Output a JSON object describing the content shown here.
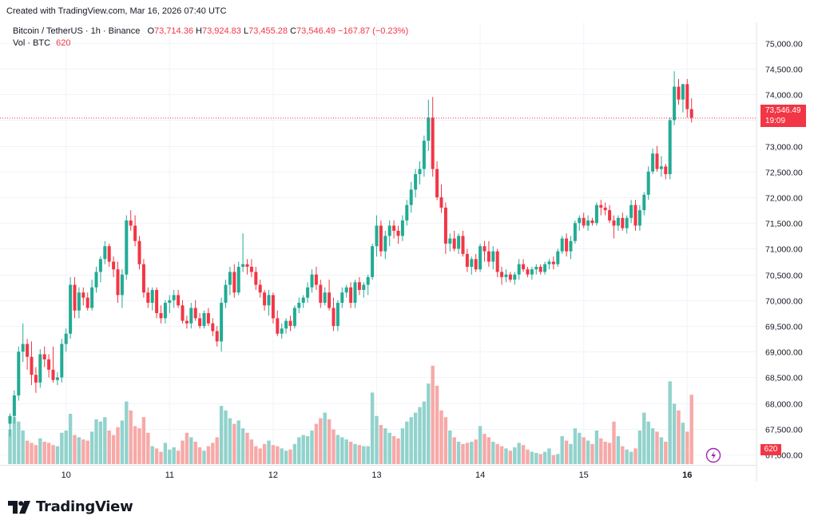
{
  "header": {
    "created_text": "Created with TradingView.com, Mar 16, 2026 07:40 UTC"
  },
  "legend": {
    "symbol": "Bitcoin / TetherUS · 1h · Binance",
    "o_label": "O",
    "o_value": "73,714.36",
    "h_label": "H",
    "h_value": "73,924.83",
    "l_label": "L",
    "l_value": "73,455.28",
    "c_label": "C",
    "c_value": "73,546.49",
    "change": "−167.87 (−0.23%)",
    "vol_label": "Vol · BTC",
    "vol_value": "620"
  },
  "last_price": {
    "price": "73,546.49",
    "countdown": "19:09",
    "volume": "620"
  },
  "logo_text": "TradingView",
  "colors": {
    "up": "#22ab94",
    "down": "#f23645",
    "up_vol": "#92d2cc",
    "down_vol": "#f7a9a7"
  },
  "chart_data": {
    "type": "candlestick",
    "ylim": [
      66800,
      75400
    ],
    "y_ticks": [
      "75,000.00",
      "74,500.00",
      "74,000.00",
      "73,500.00",
      "73,000.00",
      "72,500.00",
      "72,000.00",
      "71,500.00",
      "71,000.00",
      "70,500.00",
      "70,000.00",
      "69,500.00",
      "69,000.00",
      "68,500.00",
      "68,000.00",
      "67,500.00",
      "67,000.00"
    ],
    "y_tick_values": [
      75000,
      74500,
      74000,
      73500,
      73000,
      72500,
      72000,
      71500,
      71000,
      70500,
      70000,
      69500,
      69000,
      68500,
      68000,
      67500,
      67000
    ],
    "x_ticks": [
      {
        "label": "10",
        "index": 13,
        "bold": false
      },
      {
        "label": "11",
        "index": 37,
        "bold": false
      },
      {
        "label": "12",
        "index": 61,
        "bold": false
      },
      {
        "label": "13",
        "index": 85,
        "bold": false
      },
      {
        "label": "14",
        "index": 109,
        "bold": false
      },
      {
        "label": "15",
        "index": 133,
        "bold": false
      },
      {
        "label": "16",
        "index": 157,
        "bold": true
      }
    ],
    "last_price": 73546.49,
    "vol_max": 1000,
    "candles": [
      [
        67600,
        67800,
        67350,
        67750,
        310
      ],
      [
        67750,
        68250,
        67600,
        68150,
        420
      ],
      [
        68150,
        69100,
        68050,
        69000,
        380
      ],
      [
        69000,
        69550,
        68800,
        69150,
        300
      ],
      [
        69150,
        69250,
        68650,
        68900,
        210
      ],
      [
        68900,
        69200,
        68350,
        68550,
        190
      ],
      [
        68550,
        68700,
        68200,
        68400,
        170
      ],
      [
        68400,
        69050,
        68300,
        68950,
        230
      ],
      [
        68950,
        69100,
        68700,
        68850,
        200
      ],
      [
        68850,
        68950,
        68500,
        68650,
        190
      ],
      [
        68650,
        69100,
        68400,
        68450,
        170
      ],
      [
        68450,
        68600,
        68350,
        68500,
        160
      ],
      [
        68500,
        69250,
        68400,
        69150,
        280
      ],
      [
        69150,
        69450,
        69000,
        69350,
        300
      ],
      [
        69350,
        70450,
        69250,
        70300,
        450
      ],
      [
        70300,
        70450,
        69650,
        69800,
        260
      ],
      [
        69800,
        70250,
        69650,
        70150,
        240
      ],
      [
        70150,
        70250,
        69900,
        70050,
        220
      ],
      [
        70050,
        70150,
        69800,
        69850,
        210
      ],
      [
        69850,
        70400,
        69800,
        70250,
        290
      ],
      [
        70250,
        70650,
        70150,
        70550,
        400
      ],
      [
        70550,
        70850,
        70350,
        70800,
        380
      ],
      [
        70800,
        71150,
        70700,
        71050,
        420
      ],
      [
        71050,
        71100,
        70650,
        70750,
        300
      ],
      [
        70750,
        70850,
        70450,
        70600,
        260
      ],
      [
        70600,
        70750,
        69950,
        70100,
        330
      ],
      [
        70100,
        70600,
        69850,
        70500,
        390
      ],
      [
        70500,
        71650,
        70400,
        71550,
        560
      ],
      [
        71550,
        71750,
        71350,
        71450,
        480
      ],
      [
        71450,
        71650,
        71050,
        71150,
        340
      ],
      [
        71150,
        71250,
        70600,
        70700,
        320
      ],
      [
        70700,
        70800,
        70050,
        70150,
        420
      ],
      [
        70150,
        70250,
        69850,
        69950,
        280
      ],
      [
        69950,
        70250,
        69800,
        70200,
        160
      ],
      [
        70200,
        70250,
        69650,
        69750,
        140
      ],
      [
        69750,
        69900,
        69550,
        69650,
        110
      ],
      [
        69650,
        70000,
        69550,
        69950,
        190
      ],
      [
        69950,
        70100,
        69750,
        70000,
        130
      ],
      [
        70000,
        70200,
        69850,
        70100,
        150
      ],
      [
        70100,
        70200,
        69850,
        69900,
        120
      ],
      [
        69900,
        70000,
        69550,
        69600,
        210
      ],
      [
        69600,
        69700,
        69450,
        69550,
        280
      ],
      [
        69550,
        69950,
        69450,
        69850,
        240
      ],
      [
        69850,
        70000,
        69600,
        69650,
        200
      ],
      [
        69650,
        69750,
        69450,
        69500,
        150
      ],
      [
        69500,
        69800,
        69450,
        69750,
        120
      ],
      [
        69750,
        69850,
        69500,
        69550,
        160
      ],
      [
        69550,
        69650,
        69300,
        69400,
        190
      ],
      [
        69400,
        69500,
        69100,
        69200,
        240
      ],
      [
        69200,
        70050,
        69000,
        69950,
        520
      ],
      [
        69950,
        70400,
        69850,
        70300,
        480
      ],
      [
        70300,
        70650,
        70100,
        70550,
        410
      ],
      [
        70550,
        70700,
        70050,
        70150,
        360
      ],
      [
        70150,
        70750,
        70100,
        70650,
        390
      ],
      [
        70650,
        71300,
        70550,
        70700,
        320
      ],
      [
        70700,
        70800,
        70500,
        70650,
        280
      ],
      [
        70650,
        70800,
        70450,
        70550,
        220
      ],
      [
        70550,
        70650,
        70200,
        70300,
        160
      ],
      [
        70300,
        70400,
        70050,
        70150,
        140
      ],
      [
        70150,
        70200,
        69800,
        69900,
        180
      ],
      [
        69900,
        70200,
        69700,
        70100,
        210
      ],
      [
        70100,
        70150,
        69550,
        69650,
        170
      ],
      [
        69650,
        69800,
        69300,
        69350,
        160
      ],
      [
        69350,
        69550,
        69250,
        69450,
        140
      ],
      [
        69450,
        69650,
        69350,
        69600,
        120
      ],
      [
        69600,
        69700,
        69400,
        69500,
        130
      ],
      [
        69500,
        69900,
        69450,
        69850,
        180
      ],
      [
        69850,
        70050,
        69750,
        69950,
        240
      ],
      [
        69950,
        70100,
        69850,
        70050,
        260
      ],
      [
        70050,
        70350,
        69950,
        70250,
        250
      ],
      [
        70250,
        70600,
        70150,
        70500,
        300
      ],
      [
        70500,
        70650,
        70200,
        70300,
        360
      ],
      [
        70300,
        70400,
        69850,
        69950,
        410
      ],
      [
        69950,
        70250,
        69900,
        70150,
        460
      ],
      [
        70150,
        70400,
        69800,
        69850,
        400
      ],
      [
        69850,
        70050,
        69400,
        69500,
        310
      ],
      [
        69500,
        70000,
        69400,
        69950,
        260
      ],
      [
        69950,
        70250,
        69850,
        70150,
        240
      ],
      [
        70150,
        70300,
        70050,
        70250,
        220
      ],
      [
        70250,
        70350,
        69850,
        69950,
        200
      ],
      [
        69950,
        70400,
        69850,
        70350,
        180
      ],
      [
        70350,
        70450,
        70100,
        70200,
        170
      ],
      [
        70200,
        70350,
        70050,
        70300,
        160
      ],
      [
        70300,
        70500,
        70100,
        70450,
        160
      ],
      [
        70450,
        71100,
        70400,
        71050,
        640
      ],
      [
        71050,
        71650,
        70850,
        71450,
        430
      ],
      [
        71450,
        71550,
        70850,
        70950,
        350
      ],
      [
        70950,
        71350,
        70800,
        71250,
        320
      ],
      [
        71250,
        71550,
        71050,
        71450,
        280
      ],
      [
        71450,
        71550,
        71200,
        71350,
        250
      ],
      [
        71350,
        71450,
        71100,
        71250,
        230
      ],
      [
        71250,
        71650,
        71150,
        71550,
        320
      ],
      [
        71550,
        71950,
        71450,
        71850,
        380
      ],
      [
        71850,
        72300,
        71700,
        72150,
        420
      ],
      [
        72150,
        72550,
        72000,
        72450,
        460
      ],
      [
        72450,
        72700,
        72250,
        72550,
        510
      ],
      [
        72550,
        73200,
        72400,
        73100,
        560
      ],
      [
        73100,
        73900,
        72900,
        73550,
        720
      ],
      [
        73550,
        73950,
        72400,
        72550,
        880
      ],
      [
        72550,
        72700,
        71950,
        72000,
        700
      ],
      [
        72000,
        72250,
        71700,
        71800,
        480
      ],
      [
        71800,
        71900,
        70900,
        71100,
        420
      ],
      [
        71100,
        71300,
        70950,
        71200,
        300
      ],
      [
        71200,
        71350,
        70950,
        71000,
        240
      ],
      [
        71000,
        71300,
        70900,
        71250,
        200
      ],
      [
        71250,
        71350,
        70850,
        70900,
        180
      ],
      [
        70900,
        71000,
        70550,
        70650,
        190
      ],
      [
        70650,
        70850,
        70500,
        70800,
        200
      ],
      [
        70800,
        70900,
        70550,
        70600,
        220
      ],
      [
        70600,
        71100,
        70550,
        71050,
        340
      ],
      [
        71050,
        71150,
        70750,
        70950,
        270
      ],
      [
        70950,
        71150,
        70650,
        70750,
        240
      ],
      [
        70750,
        71050,
        70600,
        70950,
        200
      ],
      [
        70950,
        71000,
        70450,
        70550,
        180
      ],
      [
        70550,
        70650,
        70300,
        70450,
        160
      ],
      [
        70450,
        70600,
        70350,
        70500,
        140
      ],
      [
        70500,
        70550,
        70350,
        70400,
        120
      ],
      [
        70400,
        70550,
        70300,
        70500,
        150
      ],
      [
        70500,
        70800,
        70400,
        70700,
        190
      ],
      [
        70700,
        70800,
        70550,
        70600,
        170
      ],
      [
        70600,
        70650,
        70450,
        70500,
        130
      ],
      [
        70500,
        70650,
        70400,
        70600,
        110
      ],
      [
        70600,
        70700,
        70500,
        70650,
        100
      ],
      [
        70650,
        70700,
        70500,
        70550,
        90
      ],
      [
        70550,
        70750,
        70500,
        70700,
        110
      ],
      [
        70700,
        70800,
        70600,
        70750,
        140
      ],
      [
        70750,
        70850,
        70600,
        70700,
        80
      ],
      [
        70700,
        71000,
        70650,
        70950,
        90
      ],
      [
        70950,
        71250,
        70900,
        71200,
        250
      ],
      [
        71200,
        71300,
        70850,
        70950,
        210
      ],
      [
        70950,
        71250,
        70800,
        71150,
        180
      ],
      [
        71150,
        71550,
        71100,
        71500,
        320
      ],
      [
        71500,
        71650,
        71350,
        71600,
        280
      ],
      [
        71600,
        71700,
        71400,
        71450,
        240
      ],
      [
        71450,
        71650,
        71350,
        71550,
        210
      ],
      [
        71550,
        71600,
        71450,
        71500,
        180
      ],
      [
        71500,
        71900,
        71450,
        71850,
        300
      ],
      [
        71850,
        71950,
        71650,
        71800,
        230
      ],
      [
        71800,
        71900,
        71650,
        71750,
        200
      ],
      [
        71750,
        71850,
        71500,
        71550,
        190
      ],
      [
        71550,
        71650,
        71200,
        71450,
        380
      ],
      [
        71450,
        71650,
        71350,
        71600,
        250
      ],
      [
        71600,
        71700,
        71350,
        71400,
        160
      ],
      [
        71400,
        71650,
        71300,
        71600,
        130
      ],
      [
        71600,
        71950,
        71500,
        71850,
        110
      ],
      [
        71850,
        71950,
        71350,
        71450,
        140
      ],
      [
        71450,
        71850,
        71350,
        71750,
        300
      ],
      [
        71750,
        72100,
        71650,
        72050,
        460
      ],
      [
        72050,
        72600,
        71950,
        72500,
        380
      ],
      [
        72500,
        72950,
        72450,
        72850,
        320
      ],
      [
        72850,
        73000,
        72500,
        72550,
        290
      ],
      [
        72550,
        72800,
        72400,
        72600,
        240
      ],
      [
        72600,
        72650,
        72350,
        72450,
        200
      ],
      [
        72450,
        73550,
        72350,
        73500,
        740
      ],
      [
        73500,
        74450,
        73400,
        74150,
        540
      ],
      [
        74150,
        74300,
        73800,
        73900,
        480
      ],
      [
        73900,
        74200,
        73650,
        74200,
        370
      ],
      [
        74200,
        74300,
        73550,
        73714,
        290
      ],
      [
        73714.36,
        73924.83,
        73455.28,
        73546.49,
        620
      ]
    ]
  }
}
